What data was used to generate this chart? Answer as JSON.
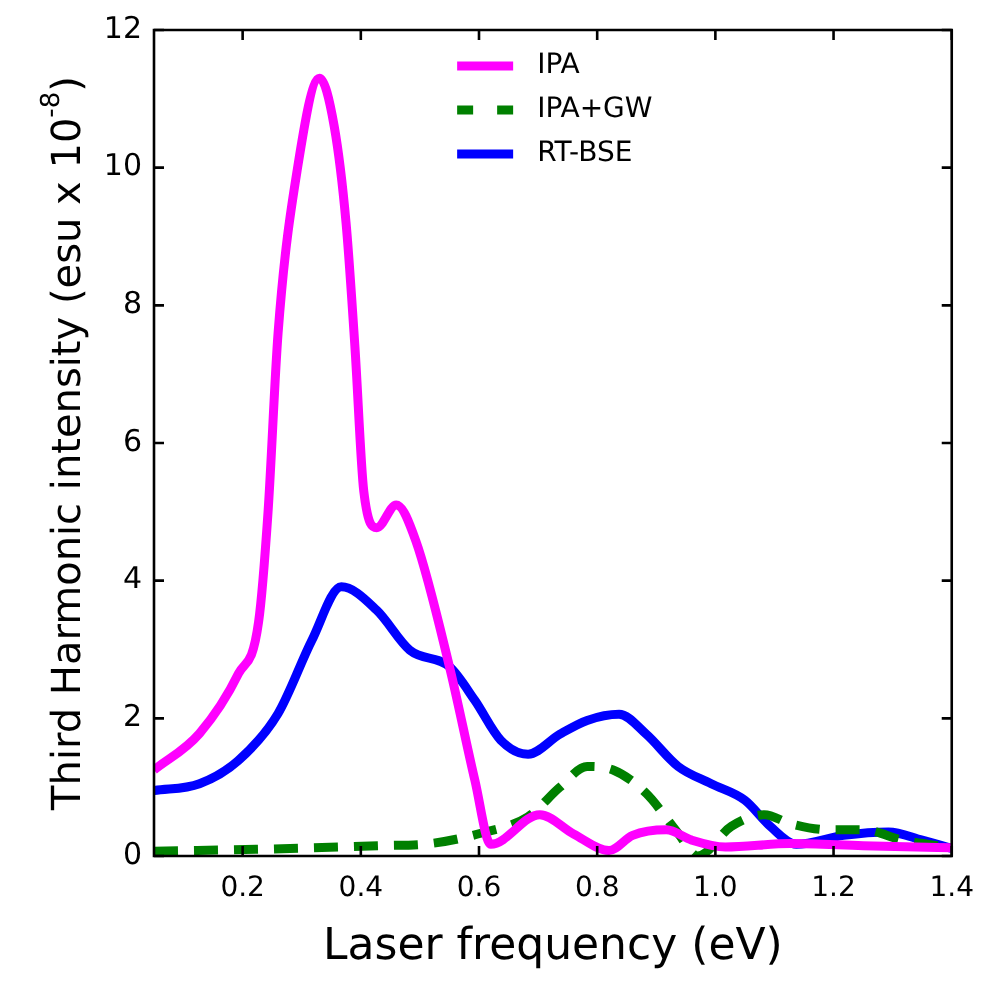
{
  "chart_data": {
    "type": "line",
    "xlabel": "Laser frequency (eV)",
    "ylabel": "Third Harmonic intensity (esu x 10$^{-8}$)",
    "xlim": [
      0.05,
      1.4
    ],
    "xticks": [
      0.2,
      0.4,
      0.6,
      0.8,
      {
        "value": 1.0,
        "label": "1.0"
      },
      1.2,
      1.4
    ],
    "ylim": [
      0,
      12
    ],
    "yticks": [
      0,
      2,
      4,
      6,
      8,
      10,
      12
    ],
    "grid": false,
    "legend": "top",
    "marker": "none",
    "series": [
      {
        "name": "IPA",
        "color": "#ff00ff",
        "line_style": "solid",
        "x": [
          0.05,
          0.127,
          0.193,
          0.227,
          0.243,
          0.26,
          0.293,
          0.33,
          0.355,
          0.375,
          0.39,
          0.405,
          0.427,
          0.46,
          0.493,
          0.55,
          0.593,
          0.62,
          0.703,
          0.76,
          0.82,
          0.86,
          0.917,
          0.96,
          1.017,
          1.127,
          1.25,
          1.4
        ],
        "values": [
          1.25,
          1.78,
          2.65,
          3.4,
          5.0,
          7.6,
          10.0,
          11.3,
          10.6,
          9.2,
          7.4,
          5.3,
          4.77,
          5.1,
          4.58,
          2.75,
          1.1,
          0.17,
          0.6,
          0.32,
          0.08,
          0.3,
          0.38,
          0.23,
          0.13,
          0.18,
          0.15,
          0.12
        ]
      },
      {
        "name": "IPA+GW",
        "color": "#008000",
        "line_style": "dashed",
        "x": [
          0.05,
          0.237,
          0.433,
          0.517,
          0.603,
          0.683,
          0.737,
          0.783,
          0.827,
          0.883,
          0.937,
          0.97,
          1.027,
          1.083,
          1.127,
          1.193,
          1.25,
          1.317,
          1.4
        ],
        "values": [
          0.07,
          0.1,
          0.15,
          0.18,
          0.33,
          0.57,
          1.0,
          1.3,
          1.25,
          0.91,
          0.33,
          0.0,
          0.43,
          0.6,
          0.47,
          0.38,
          0.38,
          0.23,
          0.12
        ]
      },
      {
        "name": "RT-BSE",
        "color": "#0000ff",
        "line_style": "solid",
        "x": [
          0.05,
          0.127,
          0.193,
          0.26,
          0.317,
          0.367,
          0.427,
          0.483,
          0.55,
          0.593,
          0.637,
          0.683,
          0.737,
          0.783,
          0.837,
          0.883,
          0.937,
          0.993,
          1.05,
          1.093,
          1.137,
          1.217,
          1.293,
          1.35,
          1.4
        ],
        "values": [
          0.95,
          1.05,
          1.39,
          2.07,
          3.13,
          3.91,
          3.57,
          2.99,
          2.75,
          2.26,
          1.68,
          1.48,
          1.77,
          1.97,
          2.06,
          1.77,
          1.3,
          1.05,
          0.81,
          0.43,
          0.17,
          0.3,
          0.35,
          0.23,
          0.11
        ]
      }
    ]
  }
}
